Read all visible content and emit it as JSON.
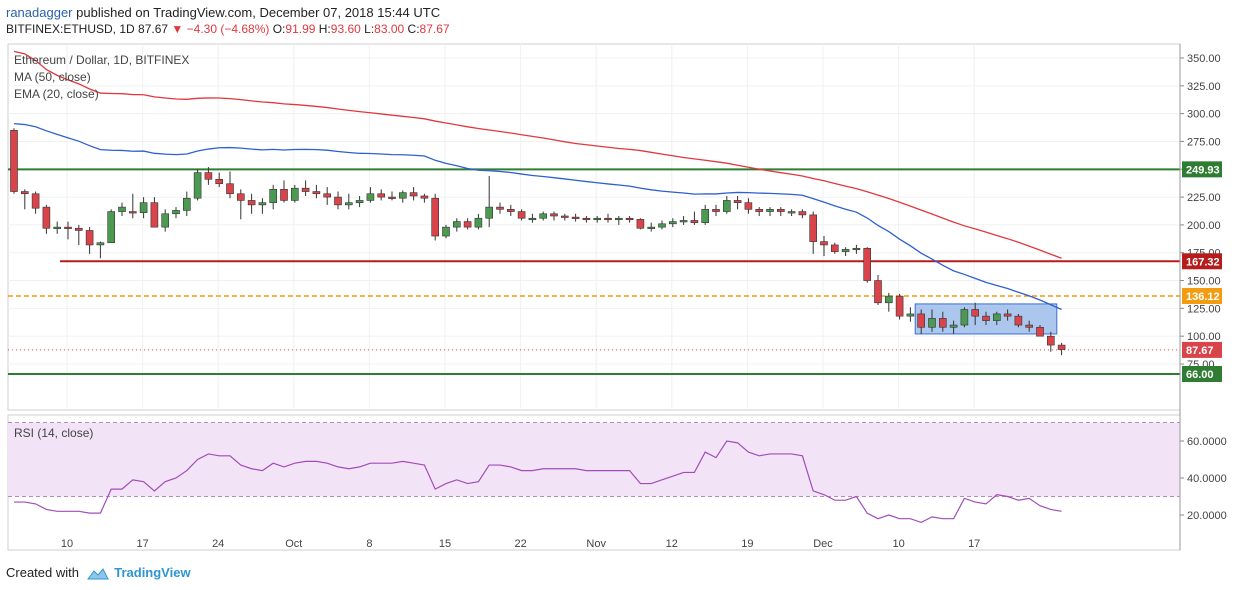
{
  "header": {
    "author": "ranadagger",
    "published_text": "published on TradingView.com, December 07, 2018 15:44 UTC",
    "symbol": "BITFINEX:ETHUSD, 1D",
    "last": "87.67",
    "change": "−4.30 (−4.68%)",
    "o_label": "O:",
    "o": "91.99",
    "h_label": "H:",
    "h": "93.60",
    "l_label": "L:",
    "l": "83.00",
    "c_label": "C:",
    "c": "87.67"
  },
  "legend": {
    "title": "Ethereum / Dollar, 1D, BITFINEX",
    "ma": "MA (50, close)",
    "ema": "EMA (20, close)",
    "rsi": "RSI (14, close)"
  },
  "footer": {
    "created_with": "Created with",
    "brand": "TradingView"
  },
  "colors": {
    "up": "#4c9a52",
    "down": "#d8444a",
    "ma": "#e0383e",
    "ema": "#2f5fd0",
    "support": "#2e7d32",
    "resistance": "#b71c1c",
    "dashed": "#f39c12",
    "rsi": "#a14db8",
    "rsi_band": "#f3e3f7",
    "box": "#8fb4e8"
  },
  "chart_data": [
    {
      "type": "candlestick",
      "title": "Ethereum / Dollar, 1D, BITFINEX",
      "x_ticks": [
        "10",
        "17",
        "24",
        "Oct",
        "8",
        "15",
        "22",
        "Nov",
        "12",
        "19",
        "Dec",
        "10",
        "17"
      ],
      "y_ticks": [
        "350.00",
        "325.00",
        "300.00",
        "275.00",
        "250.00",
        "225.00",
        "200.00",
        "175.00",
        "150.00",
        "125.00",
        "100.00",
        "75.00"
      ],
      "ylim": [
        55,
        360
      ],
      "first_date": "2018-09-05",
      "ohlc": [
        [
          285,
          287,
          228,
          230
        ],
        [
          230,
          232,
          214,
          228
        ],
        [
          228,
          230,
          210,
          215
        ],
        [
          216,
          218,
          192,
          197
        ],
        [
          197,
          203,
          192,
          198
        ],
        [
          198,
          203,
          187,
          197
        ],
        [
          197,
          200,
          182,
          195
        ],
        [
          195,
          198,
          174,
          182
        ],
        [
          182,
          185,
          170,
          184
        ],
        [
          184,
          214,
          184,
          212
        ],
        [
          212,
          220,
          208,
          216
        ],
        [
          212,
          228,
          206,
          211
        ],
        [
          211,
          225,
          206,
          220
        ],
        [
          220,
          225,
          198,
          198
        ],
        [
          198,
          214,
          194,
          210
        ],
        [
          210,
          216,
          206,
          213
        ],
        [
          213,
          230,
          208,
          224
        ],
        [
          224,
          250,
          222,
          247
        ],
        [
          247,
          252,
          236,
          241
        ],
        [
          241,
          247,
          234,
          237
        ],
        [
          237,
          248,
          224,
          228
        ],
        [
          228,
          232,
          205,
          222
        ],
        [
          222,
          228,
          210,
          218
        ],
        [
          218,
          224,
          210,
          220
        ],
        [
          220,
          236,
          214,
          232
        ],
        [
          232,
          240,
          220,
          222
        ],
        [
          222,
          236,
          220,
          233
        ],
        [
          233,
          240,
          226,
          230
        ],
        [
          230,
          236,
          224,
          228
        ],
        [
          228,
          234,
          218,
          225
        ],
        [
          225,
          230,
          214,
          218
        ],
        [
          218,
          228,
          214,
          220
        ],
        [
          220,
          226,
          216,
          222
        ],
        [
          222,
          234,
          220,
          228
        ],
        [
          228,
          232,
          222,
          225
        ],
        [
          225,
          230,
          222,
          224
        ],
        [
          224,
          231,
          220,
          229
        ],
        [
          229,
          234,
          222,
          226
        ],
        [
          226,
          228,
          220,
          224
        ],
        [
          224,
          228,
          186,
          190
        ],
        [
          190,
          200,
          188,
          198
        ],
        [
          198,
          206,
          194,
          203
        ],
        [
          203,
          206,
          196,
          198
        ],
        [
          198,
          210,
          196,
          206
        ],
        [
          206,
          244,
          198,
          216
        ],
        [
          216,
          220,
          210,
          214
        ],
        [
          214,
          218,
          208,
          212
        ],
        [
          212,
          214,
          204,
          206
        ],
        [
          206,
          210,
          202,
          206
        ],
        [
          206,
          212,
          204,
          210
        ],
        [
          210,
          212,
          204,
          208
        ],
        [
          208,
          210,
          204,
          207
        ],
        [
          207,
          210,
          203,
          206
        ],
        [
          206,
          208,
          202,
          205
        ],
        [
          205,
          208,
          202,
          206
        ],
        [
          206,
          210,
          202,
          205
        ],
        [
          205,
          208,
          200,
          206
        ],
        [
          206,
          208,
          202,
          205
        ],
        [
          205,
          206,
          196,
          197
        ],
        [
          197,
          202,
          194,
          198
        ],
        [
          198,
          204,
          196,
          201
        ],
        [
          201,
          206,
          198,
          203
        ],
        [
          203,
          208,
          200,
          204
        ],
        [
          204,
          212,
          200,
          202
        ],
        [
          202,
          218,
          200,
          214
        ],
        [
          214,
          218,
          208,
          212
        ],
        [
          212,
          226,
          210,
          222
        ],
        [
          222,
          226,
          214,
          220
        ],
        [
          220,
          224,
          210,
          214
        ],
        [
          214,
          216,
          208,
          212
        ],
        [
          212,
          216,
          208,
          214
        ],
        [
          214,
          216,
          208,
          212
        ],
        [
          212,
          214,
          208,
          212
        ],
        [
          212,
          214,
          206,
          209
        ],
        [
          209,
          212,
          174,
          185
        ],
        [
          185,
          190,
          172,
          182
        ],
        [
          182,
          184,
          174,
          176
        ],
        [
          176,
          180,
          172,
          178
        ],
        [
          178,
          182,
          174,
          179
        ],
        [
          179,
          180,
          148,
          150
        ],
        [
          150,
          155,
          128,
          130
        ],
        [
          130,
          139,
          122,
          136
        ],
        [
          136,
          138,
          115,
          118
        ],
        [
          118,
          126,
          113,
          120
        ],
        [
          120,
          124,
          102,
          108
        ],
        [
          108,
          124,
          104,
          116
        ],
        [
          116,
          122,
          104,
          108
        ],
        [
          108,
          114,
          102,
          110
        ],
        [
          110,
          126,
          108,
          124
        ],
        [
          124,
          130,
          110,
          118
        ],
        [
          118,
          122,
          110,
          114
        ],
        [
          114,
          122,
          110,
          120
        ],
        [
          120,
          124,
          114,
          118
        ],
        [
          118,
          120,
          108,
          110
        ],
        [
          110,
          114,
          104,
          108
        ],
        [
          108,
          110,
          100,
          100
        ],
        [
          100,
          104,
          86,
          92
        ],
        [
          92,
          94,
          83,
          88
        ]
      ],
      "ma50_endpoints": [
        [
          0,
          356
        ],
        [
          96,
          170
        ]
      ],
      "ema20_endpoints": [
        [
          0,
          291
        ],
        [
          96,
          124
        ]
      ],
      "horizontal_lines": [
        {
          "value": 249.93,
          "label": "249.93",
          "style": "solid",
          "color": "support"
        },
        {
          "value": 167.32,
          "label": "167.32",
          "style": "solid",
          "color": "resistance"
        },
        {
          "value": 136.12,
          "label": "136.12",
          "style": "dashed",
          "color": "dashed"
        },
        {
          "value": 66.0,
          "label": "66.00",
          "style": "solid",
          "color": "support"
        }
      ],
      "last_price": {
        "value": 87.67,
        "label": "87.67"
      },
      "range_box": {
        "from_index": 84,
        "to_index": 96,
        "low": 102,
        "high": 129
      }
    },
    {
      "type": "line",
      "title": "RSI (14, close)",
      "y_ticks": [
        "60.0000",
        "40.0000",
        "20.0000"
      ],
      "ylim": [
        13,
        74
      ],
      "band": [
        30,
        70
      ],
      "values": [
        27,
        27,
        26,
        23,
        22,
        22,
        22,
        21,
        21,
        34,
        34,
        39,
        38,
        33,
        38,
        40,
        44,
        50,
        53,
        52,
        52,
        47,
        45,
        44,
        48,
        46,
        48,
        49,
        49,
        48,
        46,
        45,
        46,
        48,
        48,
        48,
        49,
        48,
        47,
        34,
        37,
        39,
        37,
        38,
        47,
        47,
        46,
        44,
        44,
        45,
        45,
        45,
        45,
        44,
        44,
        44,
        44,
        44,
        37,
        37,
        39,
        41,
        43,
        43,
        54,
        51,
        60,
        59,
        54,
        52,
        53,
        53,
        53,
        52,
        33,
        31,
        28,
        28,
        30,
        21,
        18,
        20,
        18,
        18,
        16,
        19,
        18,
        18,
        29,
        27,
        26,
        31,
        30,
        28,
        29,
        25,
        23,
        22
      ]
    }
  ]
}
